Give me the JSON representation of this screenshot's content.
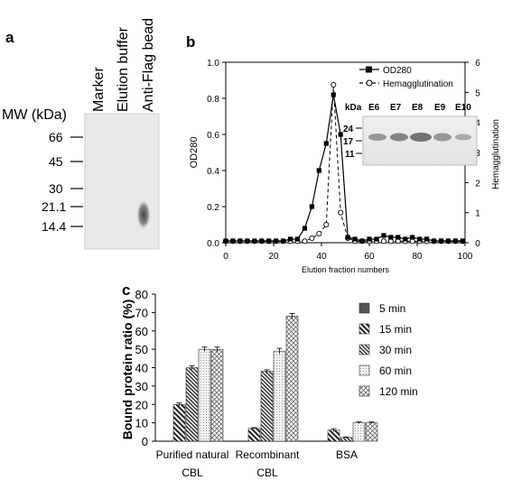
{
  "panels": {
    "a": {
      "label": "a",
      "mw_title": "MW (kDa)",
      "lane_labels": [
        "Marker",
        "Elution buffer",
        "Anti-Flag bead"
      ],
      "markers": [
        "66",
        "45",
        "30",
        "21.1",
        "14.4"
      ]
    },
    "b": {
      "label": "b",
      "inset": {
        "kda_label": "kDa",
        "lanes": [
          "E6",
          "E7",
          "E8",
          "E9",
          "E10"
        ],
        "markers": [
          "24",
          "17",
          "11"
        ]
      }
    },
    "c": {
      "label": "c"
    }
  },
  "chart_data": [
    {
      "id": "b",
      "type": "line",
      "xlabel": "Elution fraction numbers",
      "ylabel": "OD280",
      "y2label": "Hemagglutination",
      "xlim": [
        0,
        100
      ],
      "ylim": [
        0,
        1.0
      ],
      "y2lim": [
        0,
        6
      ],
      "xticks": [
        "0",
        "20",
        "40",
        "60",
        "80",
        "100"
      ],
      "yticks": [
        "0.0",
        "0.2",
        "0.4",
        "0.6",
        "0.8",
        "1.0"
      ],
      "y2ticks": [
        "0",
        "1",
        "2",
        "3",
        "4",
        "5",
        "6"
      ],
      "legend_position": "top-right",
      "series": [
        {
          "name": "OD280",
          "axis": "left",
          "x": [
            0,
            3,
            6,
            9,
            12,
            15,
            18,
            21,
            24,
            27,
            30,
            33,
            36,
            39,
            42,
            45,
            48,
            51,
            54,
            57,
            60,
            63,
            66,
            69,
            72,
            75,
            78,
            81,
            84,
            87,
            90,
            93,
            96,
            99
          ],
          "y": [
            0.01,
            0.01,
            0.01,
            0.01,
            0.01,
            0.01,
            0.01,
            0.01,
            0.01,
            0.02,
            0.02,
            0.08,
            0.2,
            0.4,
            0.55,
            0.82,
            0.6,
            0.03,
            0.02,
            0.01,
            0.02,
            0.02,
            0.04,
            0.03,
            0.03,
            0.02,
            0.03,
            0.02,
            0.02,
            0.01,
            0.01,
            0.01,
            0.01,
            0.01
          ]
        },
        {
          "name": "Hemagglutination",
          "axis": "right",
          "x": [
            0,
            3,
            6,
            9,
            12,
            15,
            18,
            21,
            24,
            27,
            30,
            33,
            36,
            39,
            42,
            45,
            48,
            51,
            54,
            57,
            60,
            63,
            66,
            69,
            72,
            75,
            78,
            81,
            84,
            87,
            90,
            93,
            96,
            99
          ],
          "y": [
            0.05,
            0.05,
            0.05,
            0.05,
            0.05,
            0.05,
            0.05,
            0.05,
            0.05,
            0.05,
            0.05,
            0.05,
            0.15,
            0.3,
            0.6,
            5.25,
            1.0,
            0.15,
            0.05,
            0.05,
            0.05,
            0.05,
            0.05,
            0.05,
            0.05,
            0.05,
            0.05,
            0.05,
            0.05,
            0.05,
            0.05,
            0.05,
            0.05,
            0.05
          ]
        }
      ]
    },
    {
      "id": "c",
      "type": "bar",
      "ylabel": "Bound protein ratio (%)",
      "ylim": [
        0,
        80
      ],
      "yticks": [
        "0",
        "10",
        "20",
        "30",
        "40",
        "50",
        "60",
        "70",
        "80"
      ],
      "categories": [
        [
          "Purified natural",
          "CBL"
        ],
        [
          "Recombinant",
          "CBL"
        ],
        [
          "BSA",
          ""
        ]
      ],
      "legend_position": "right",
      "series": [
        {
          "name": "5 min",
          "values": [
            0,
            0,
            0
          ],
          "errors": [
            0,
            0,
            0
          ]
        },
        {
          "name": "15 min",
          "values": [
            20,
            7,
            6
          ],
          "errors": [
            0.8,
            0.4,
            0.8
          ]
        },
        {
          "name": "30 min",
          "values": [
            40,
            38,
            2
          ],
          "errors": [
            1.0,
            0.8,
            0.3
          ]
        },
        {
          "name": "60 min",
          "values": [
            50,
            49,
            10
          ],
          "errors": [
            1.2,
            1.5,
            0.5
          ]
        },
        {
          "name": "120 min",
          "values": [
            50,
            68,
            10
          ],
          "errors": [
            1.2,
            1.5,
            0.5
          ]
        }
      ]
    }
  ]
}
